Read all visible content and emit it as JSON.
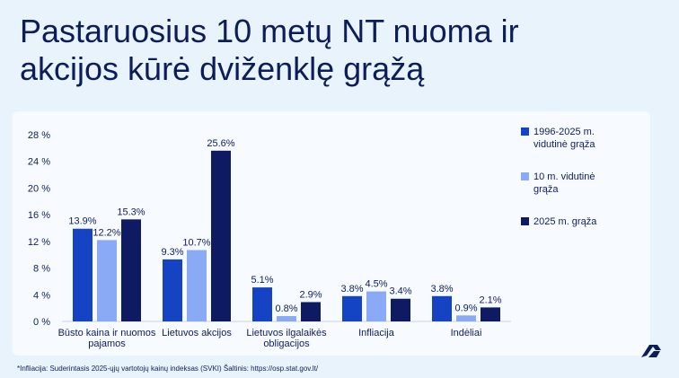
{
  "title_line1": "Pastaruosius 10 metų NT nuoma ir",
  "title_line2": "akcijos kūrė dviženklę grąžą",
  "footnote": "*Infliacija: Suderintasis 2025-ųjų vartotojų kainų indeksas (SVKI) Šaltinis: https://osp.stat.gov.lt/",
  "logo_icon": "brand-logo-icon",
  "chart_data": {
    "type": "bar",
    "ylim": [
      0,
      28
    ],
    "yticks": [
      "0 %",
      "4 %",
      "8 %",
      "12 %",
      "16 %",
      "20 %",
      "24 %",
      "28 %"
    ],
    "categories": [
      [
        "Būsto kaina ir nuomos",
        "pajamos"
      ],
      [
        "Lietuvos akcijos"
      ],
      [
        "Lietuvos ilgalaikės",
        "obligacijos"
      ],
      [
        "Infliacija"
      ],
      [
        "Indėliai"
      ]
    ],
    "series": [
      {
        "name": [
          "1996-2025 m.",
          "vidutinė grąža"
        ],
        "color": "#1443c4",
        "values": [
          13.9,
          9.3,
          5.1,
          3.8,
          3.8
        ],
        "labels": [
          "13.9%",
          "9.3%",
          "5.1%",
          "3.8%",
          "3.8%"
        ]
      },
      {
        "name": [
          "10 m. vidutinė",
          "grąža"
        ],
        "color": "#8aaaf5",
        "values": [
          12.2,
          10.7,
          0.8,
          4.5,
          0.9
        ],
        "labels": [
          "12.2%",
          "10.7%",
          "0.8%",
          "4.5%",
          "0.9%"
        ]
      },
      {
        "name": [
          "2025 m. grąža"
        ],
        "color": "#0e1b63",
        "values": [
          15.3,
          25.6,
          2.9,
          3.4,
          2.1
        ],
        "labels": [
          "15.3%",
          "25.6%",
          "2.9%",
          "3.4%",
          "2.1%"
        ]
      }
    ],
    "legend_position": "right",
    "grid": false
  }
}
